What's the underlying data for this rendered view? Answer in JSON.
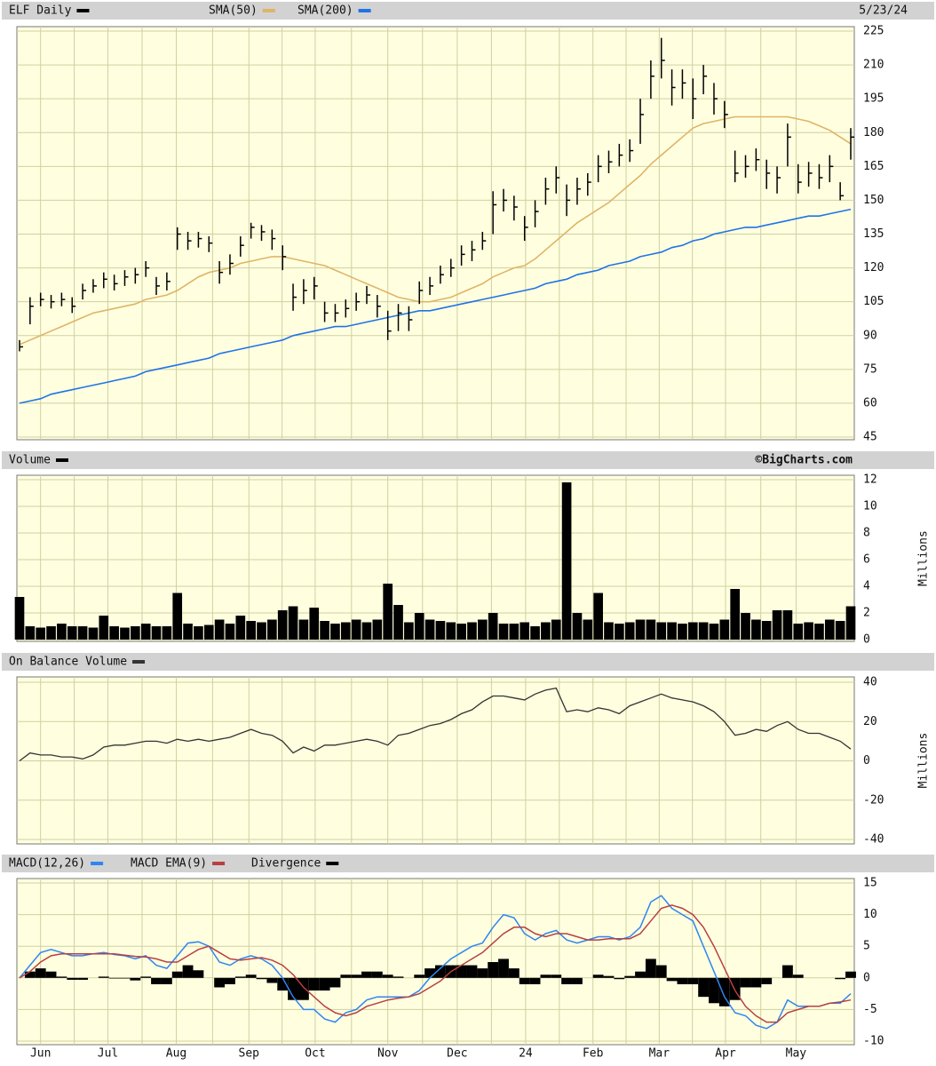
{
  "chart_data": [
    {
      "type": "ohlc",
      "name": "ELF Daily",
      "date": "5/23/24",
      "color": "#000000",
      "high": [
        88,
        107,
        109,
        108,
        109,
        107,
        113,
        115,
        118,
        117,
        119,
        120,
        123,
        116,
        118,
        138,
        136,
        136,
        134,
        123,
        126,
        134,
        140,
        139,
        137,
        130,
        113,
        115,
        116,
        105,
        104,
        106,
        109,
        112,
        108,
        101,
        104,
        103,
        114,
        116,
        121,
        124,
        130,
        132,
        136,
        154,
        155,
        152,
        143,
        150,
        160,
        165,
        157,
        160,
        162,
        170,
        172,
        175,
        177,
        195,
        212,
        222,
        208,
        208,
        204,
        210,
        202,
        194,
        172,
        170,
        173,
        168,
        165,
        184,
        166,
        167,
        166,
        170,
        158,
        182
      ],
      "low": [
        83,
        95,
        103,
        102,
        103,
        100,
        106,
        109,
        111,
        110,
        112,
        113,
        116,
        108,
        110,
        128,
        128,
        129,
        127,
        113,
        117,
        125,
        133,
        132,
        128,
        119,
        101,
        104,
        106,
        96,
        96,
        98,
        101,
        104,
        98,
        88,
        92,
        92,
        104,
        108,
        113,
        116,
        121,
        123,
        128,
        135,
        145,
        141,
        132,
        138,
        148,
        153,
        143,
        148,
        152,
        158,
        162,
        165,
        167,
        175,
        195,
        204,
        192,
        195,
        186,
        197,
        188,
        182,
        158,
        160,
        163,
        155,
        153,
        165,
        153,
        156,
        155,
        158,
        150,
        168
      ],
      "close": [
        85,
        103,
        106,
        105,
        106,
        103,
        110,
        112,
        115,
        113,
        116,
        117,
        120,
        112,
        114,
        135,
        132,
        133,
        131,
        118,
        122,
        130,
        138,
        136,
        133,
        125,
        107,
        110,
        112,
        100,
        100,
        102,
        105,
        108,
        103,
        92,
        100,
        97,
        110,
        112,
        117,
        120,
        126,
        128,
        132,
        148,
        150,
        147,
        138,
        145,
        155,
        160,
        150,
        155,
        158,
        165,
        167,
        170,
        172,
        188,
        205,
        212,
        200,
        202,
        195,
        205,
        195,
        188,
        162,
        165,
        168,
        162,
        160,
        178,
        158,
        162,
        160,
        165,
        152,
        178
      ],
      "overlays": [
        {
          "name": "SMA(50)",
          "color": "#e0b466",
          "values": [
            86,
            88,
            90,
            92,
            94,
            96,
            98,
            100,
            101,
            102,
            103,
            104,
            106,
            107,
            108,
            110,
            113,
            116,
            118,
            119,
            120,
            122,
            123,
            124,
            125,
            125,
            124,
            123,
            122,
            121,
            119,
            117,
            115,
            113,
            111,
            109,
            107,
            106,
            105,
            105,
            106,
            107,
            109,
            111,
            113,
            116,
            118,
            120,
            121,
            124,
            128,
            132,
            136,
            140,
            143,
            146,
            149,
            153,
            157,
            161,
            166,
            170,
            174,
            178,
            182,
            184,
            185,
            186,
            187,
            187,
            187,
            187,
            187,
            187,
            186,
            185,
            183,
            181,
            178,
            175
          ]
        },
        {
          "name": "SMA(200)",
          "color": "#1f73e6",
          "values": [
            60,
            61,
            62,
            64,
            65,
            66,
            67,
            68,
            69,
            70,
            71,
            72,
            74,
            75,
            76,
            77,
            78,
            79,
            80,
            82,
            83,
            84,
            85,
            86,
            87,
            88,
            90,
            91,
            92,
            93,
            94,
            94,
            95,
            96,
            97,
            98,
            99,
            100,
            101,
            101,
            102,
            103,
            104,
            105,
            106,
            107,
            108,
            109,
            110,
            111,
            113,
            114,
            115,
            117,
            118,
            119,
            121,
            122,
            123,
            125,
            126,
            127,
            129,
            130,
            132,
            133,
            135,
            136,
            137,
            138,
            138,
            139,
            140,
            141,
            142,
            143,
            143,
            144,
            145,
            146
          ]
        }
      ],
      "xlim": [
        0,
        79
      ],
      "ylim": [
        45,
        225
      ],
      "yticks": [
        45,
        60,
        75,
        90,
        105,
        120,
        135,
        150,
        165,
        180,
        195,
        210,
        225
      ],
      "grid": true
    },
    {
      "type": "bar",
      "name": "Volume",
      "credit": "©BigCharts.com",
      "ylabel": "Millions",
      "color": "#000000",
      "values": [
        3.2,
        1,
        0.9,
        1,
        1.2,
        1,
        1,
        0.9,
        1.8,
        1,
        0.9,
        1,
        1.2,
        1,
        1,
        3.5,
        1.2,
        1,
        1.1,
        1.5,
        1.2,
        1.8,
        1.4,
        1.3,
        1.5,
        2.2,
        2.5,
        1.5,
        2.4,
        1.4,
        1.2,
        1.3,
        1.5,
        1.3,
        1.5,
        4.2,
        2.6,
        1.3,
        2,
        1.5,
        1.4,
        1.3,
        1.2,
        1.3,
        1.5,
        2,
        1.2,
        1.2,
        1.3,
        1,
        1.3,
        1.5,
        11.8,
        2,
        1.5,
        3.5,
        1.3,
        1.2,
        1.3,
        1.5,
        1.5,
        1.3,
        1.3,
        1.2,
        1.3,
        1.3,
        1.2,
        1.5,
        3.8,
        2,
        1.5,
        1.4,
        2.2,
        2.2,
        1.2,
        1.3,
        1.2,
        1.5,
        1.4,
        2.5
      ],
      "xlim": [
        0,
        79
      ],
      "ylim": [
        0,
        12
      ],
      "yticks": [
        0,
        2,
        4,
        6,
        8,
        10,
        12
      ],
      "grid": true
    },
    {
      "type": "line",
      "name": "On Balance Volume",
      "ylabel": "Millions",
      "color": "#333333",
      "values": [
        0,
        4,
        3,
        3,
        2,
        2,
        1,
        3,
        7,
        8,
        8,
        9,
        10,
        10,
        9,
        11,
        10,
        11,
        10,
        11,
        12,
        14,
        16,
        14,
        13,
        10,
        4,
        7,
        5,
        8,
        8,
        9,
        10,
        11,
        10,
        8,
        13,
        14,
        16,
        18,
        19,
        21,
        24,
        26,
        30,
        33,
        33,
        32,
        31,
        34,
        36,
        37,
        25,
        26,
        25,
        27,
        26,
        24,
        28,
        30,
        32,
        34,
        32,
        31,
        30,
        28,
        25,
        20,
        13,
        14,
        16,
        15,
        18,
        20,
        16,
        14,
        14,
        12,
        10,
        6
      ],
      "xlim": [
        0,
        79
      ],
      "ylim": [
        -40,
        40
      ],
      "yticks": [
        -40,
        -20,
        0,
        20,
        40
      ],
      "grid": true
    },
    {
      "type": "macd",
      "series": [
        {
          "name": "MACD(12,26)",
          "type": "line",
          "color": "#2f86ee",
          "values": [
            0,
            2,
            4,
            4.5,
            4,
            3.5,
            3.5,
            3.8,
            4,
            3.7,
            3.5,
            3,
            3.5,
            2,
            1.5,
            3.5,
            5.5,
            5.7,
            5,
            2.5,
            2,
            3,
            3.5,
            3,
            2,
            0,
            -3,
            -5,
            -5,
            -6.5,
            -7,
            -5.5,
            -5,
            -3.5,
            -3,
            -3,
            -3,
            -3,
            -2,
            0,
            1.5,
            3,
            4,
            5,
            5.5,
            8,
            10,
            9.5,
            7,
            6,
            7,
            7.5,
            6,
            5.5,
            6,
            6.5,
            6.5,
            6,
            6.5,
            8,
            12,
            13,
            11,
            10,
            9,
            5,
            1,
            -3,
            -5.5,
            -6,
            -7.5,
            -8,
            -7,
            -3.5,
            -4.5,
            -4.5,
            -4.5,
            -4,
            -4,
            -2.5
          ]
        },
        {
          "name": "MACD EMA(9)",
          "type": "line",
          "color": "#b84040",
          "values": [
            0,
            1,
            2.5,
            3.5,
            3.8,
            3.8,
            3.8,
            3.8,
            3.8,
            3.8,
            3.6,
            3.4,
            3.3,
            3,
            2.5,
            2.5,
            3.5,
            4.5,
            5,
            4,
            3,
            2.8,
            3,
            3.2,
            2.8,
            2,
            0.5,
            -1.5,
            -3,
            -4.5,
            -5.5,
            -6,
            -5.5,
            -4.5,
            -4,
            -3.5,
            -3.2,
            -3,
            -2.5,
            -1.5,
            -0.5,
            1,
            2,
            3,
            4,
            5.5,
            7,
            8,
            8,
            7,
            6.5,
            7,
            7,
            6.5,
            6,
            6,
            6.2,
            6.2,
            6.2,
            7,
            9,
            11,
            11.5,
            11,
            10,
            8,
            5,
            1.5,
            -2,
            -4.5,
            -6,
            -7,
            -7,
            -5.5,
            -5,
            -4.5,
            -4.5,
            -4,
            -3.8,
            -3.5
          ]
        },
        {
          "name": "Divergence",
          "type": "bar",
          "color": "#000000",
          "values": [
            0,
            1,
            1.5,
            1,
            0.2,
            -0.3,
            -0.3,
            0,
            0.2,
            -0.1,
            -0.1,
            -0.4,
            0.2,
            -1,
            -1,
            1,
            2,
            1.2,
            0,
            -1.5,
            -1,
            0.2,
            0.5,
            -0.2,
            -0.8,
            -2,
            -3.5,
            -3.5,
            -2,
            -2,
            -1.5,
            0.5,
            0.5,
            1,
            1,
            0.5,
            0.2,
            0,
            0.5,
            1.5,
            2,
            2,
            2,
            2,
            1.5,
            2.5,
            3,
            1.5,
            -1,
            -1,
            0.5,
            0.5,
            -1,
            -1,
            0,
            0.5,
            0.3,
            -0.2,
            0.3,
            1,
            3,
            2,
            -0.5,
            -1,
            -1,
            -3,
            -4,
            -4.5,
            -3.5,
            -1.5,
            -1.5,
            -1,
            0,
            2,
            0.5,
            0,
            0,
            0,
            -0.2,
            1
          ]
        }
      ],
      "xlim": [
        0,
        79
      ],
      "ylim": [
        -10,
        15
      ],
      "yticks": [
        -10,
        -5,
        0,
        5,
        10,
        15
      ],
      "grid": true,
      "xticks": [
        {
          "value": 2,
          "label": "Jun"
        },
        {
          "value": 8.4,
          "label": "Jul"
        },
        {
          "value": 14.9,
          "label": "Aug"
        },
        {
          "value": 21.8,
          "label": "Sep"
        },
        {
          "value": 28.1,
          "label": "Oct"
        },
        {
          "value": 35,
          "label": "Nov"
        },
        {
          "value": 41.6,
          "label": "Dec"
        },
        {
          "value": 48.1,
          "label": "24"
        },
        {
          "value": 54.5,
          "label": "Feb"
        },
        {
          "value": 60.8,
          "label": "Mar"
        },
        {
          "value": 67.1,
          "label": "Apr"
        },
        {
          "value": 73.8,
          "label": "May"
        }
      ]
    }
  ]
}
